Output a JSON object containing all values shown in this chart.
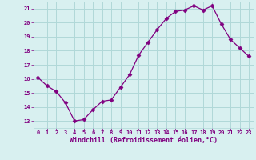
{
  "x": [
    0,
    1,
    2,
    3,
    4,
    5,
    6,
    7,
    8,
    9,
    10,
    11,
    12,
    13,
    14,
    15,
    16,
    17,
    18,
    19,
    20,
    21,
    22,
    23
  ],
  "y": [
    16.1,
    15.5,
    15.1,
    14.3,
    13.0,
    13.1,
    13.8,
    14.4,
    14.5,
    15.4,
    16.3,
    17.7,
    18.6,
    19.5,
    20.3,
    20.8,
    20.9,
    21.2,
    20.9,
    21.2,
    19.9,
    18.8,
    18.2,
    17.6
  ],
  "line_color": "#800080",
  "marker": "D",
  "marker_size": 2.5,
  "bg_color": "#d8f0f0",
  "grid_color": "#b0d8d8",
  "xlabel": "Windchill (Refroidissement éolien,°C)",
  "xlabel_color": "#800080",
  "tick_color": "#800080",
  "ylim": [
    12.5,
    21.5
  ],
  "xlim": [
    -0.5,
    23.5
  ],
  "yticks": [
    13,
    14,
    15,
    16,
    17,
    18,
    19,
    20,
    21
  ],
  "xticks": [
    0,
    1,
    2,
    3,
    4,
    5,
    6,
    7,
    8,
    9,
    10,
    11,
    12,
    13,
    14,
    15,
    16,
    17,
    18,
    19,
    20,
    21,
    22,
    23
  ],
  "font_family": "monospace"
}
